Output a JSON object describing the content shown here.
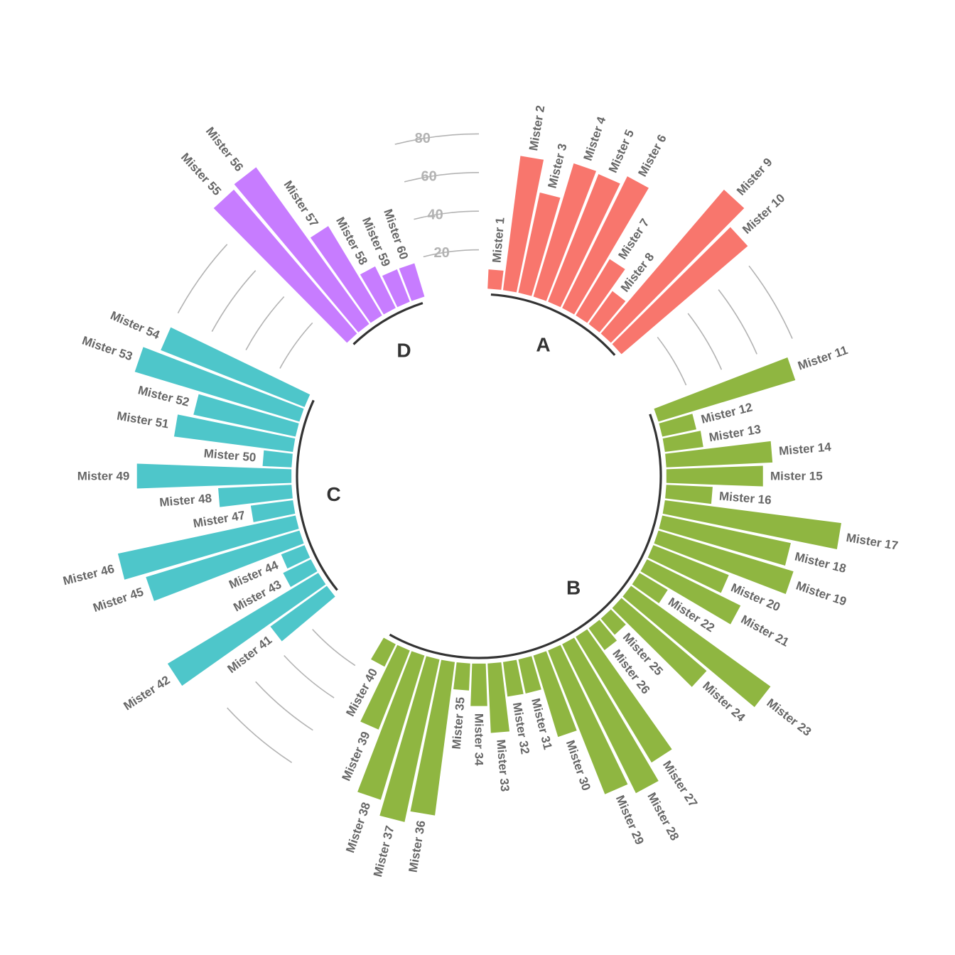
{
  "chart_data": {
    "type": "circular-bar",
    "yticks": [
      20,
      40,
      60,
      80
    ],
    "colors": {
      "A": "#f8766d",
      "B": "#8fb641",
      "C": "#4ec6ca",
      "D": "#c77cff"
    },
    "groups": [
      {
        "name": "A",
        "label": "A",
        "color": "#f8766d",
        "bars": [
          {
            "name": "Mister 1",
            "value": 10
          },
          {
            "name": "Mister 2",
            "value": 70
          },
          {
            "name": "Mister 3",
            "value": 53
          },
          {
            "name": "Mister 4",
            "value": 72
          },
          {
            "name": "Mister 5",
            "value": 71
          },
          {
            "name": "Mister 6",
            "value": 76
          },
          {
            "name": "Mister 7",
            "value": 34
          },
          {
            "name": "Mister 8",
            "value": 21
          },
          {
            "name": "Mister 9",
            "value": 98
          },
          {
            "name": "Mister 10",
            "value": 86
          }
        ]
      },
      {
        "name": "B",
        "label": "B",
        "color": "#8fb641",
        "bars": [
          {
            "name": "Mister 11",
            "value": 74
          },
          {
            "name": "Mister 12",
            "value": 18
          },
          {
            "name": "Mister 13",
            "value": 20
          },
          {
            "name": "Mister 14",
            "value": 55
          },
          {
            "name": "Mister 15",
            "value": 50
          },
          {
            "name": "Mister 16",
            "value": 24
          },
          {
            "name": "Mister 17",
            "value": 92
          },
          {
            "name": "Mister 18",
            "value": 68
          },
          {
            "name": "Mister 19",
            "value": 73
          },
          {
            "name": "Mister 20",
            "value": 42
          },
          {
            "name": "Mister 21",
            "value": 54
          },
          {
            "name": "Mister 22",
            "value": 17
          },
          {
            "name": "Mister 23",
            "value": 89
          },
          {
            "name": "Mister 24",
            "value": 58
          },
          {
            "name": "Mister 25",
            "value": 11
          },
          {
            "name": "Mister 26",
            "value": 14
          },
          {
            "name": "Mister 27",
            "value": 76
          },
          {
            "name": "Mister 28",
            "value": 86
          },
          {
            "name": "Mister 29",
            "value": 80
          },
          {
            "name": "Mister 30",
            "value": 44
          },
          {
            "name": "Mister 31",
            "value": 18
          },
          {
            "name": "Mister 32",
            "value": 18
          },
          {
            "name": "Mister 33",
            "value": 36
          },
          {
            "name": "Mister 34",
            "value": 22
          },
          {
            "name": "Mister 35",
            "value": 14
          },
          {
            "name": "Mister 36",
            "value": 80
          },
          {
            "name": "Mister 37",
            "value": 86
          },
          {
            "name": "Mister 38",
            "value": 78
          },
          {
            "name": "Mister 39",
            "value": 44
          },
          {
            "name": "Mister 40",
            "value": 13
          }
        ]
      },
      {
        "name": "C",
        "label": "C",
        "color": "#4ec6ca",
        "bars": [
          {
            "name": "Mister 41",
            "value": 36
          },
          {
            "name": "Mister 42",
            "value": 91
          },
          {
            "name": "Mister 43",
            "value": 16
          },
          {
            "name": "Mister 44",
            "value": 13
          },
          {
            "name": "Mister 45",
            "value": 83
          },
          {
            "name": "Mister 46",
            "value": 94
          },
          {
            "name": "Mister 47",
            "value": 22
          },
          {
            "name": "Mister 48",
            "value": 38
          },
          {
            "name": "Mister 49",
            "value": 80
          },
          {
            "name": "Mister 50",
            "value": 15
          },
          {
            "name": "Mister 51",
            "value": 62
          },
          {
            "name": "Mister 52",
            "value": 54
          },
          {
            "name": "Mister 53",
            "value": 89
          },
          {
            "name": "Mister 54",
            "value": 80
          }
        ]
      },
      {
        "name": "D",
        "label": "D",
        "color": "#c77cff",
        "bars": [
          {
            "name": "Mister 55",
            "value": 98
          },
          {
            "name": "Mister 56",
            "value": 100
          },
          {
            "name": "Mister 57",
            "value": 54
          },
          {
            "name": "Mister 58",
            "value": 24
          },
          {
            "name": "Mister 59",
            "value": 18
          },
          {
            "name": "Mister 60",
            "value": 18
          }
        ]
      }
    ]
  }
}
